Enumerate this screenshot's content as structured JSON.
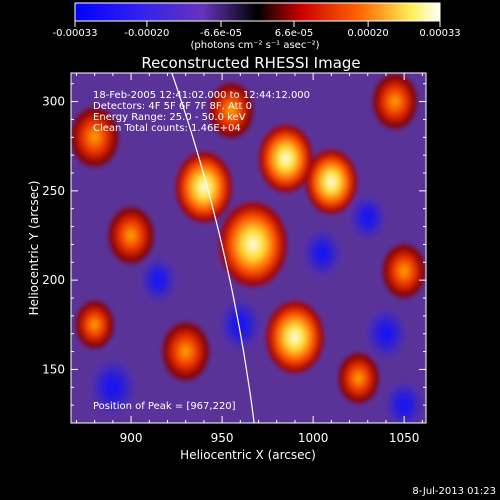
{
  "colorbar": {
    "tick_labels": [
      "-0.00033",
      "-0.00020",
      "-6.6e-05",
      "6.6e-05",
      "0.00020",
      "0.00033"
    ],
    "tick_values": [
      -0.00033,
      -0.0002,
      -6.6e-05,
      6.6e-05,
      0.0002,
      0.00033
    ],
    "range": [
      -0.00033,
      0.00033
    ],
    "unit_label": "(photons cm⁻² s⁻¹ asec⁻²)",
    "colors": [
      "#0000ff",
      "#6633cc",
      "#000000",
      "#cc0000",
      "#ff6600",
      "#ffff66",
      "#ffffff"
    ]
  },
  "chart_data": {
    "type": "heatmap",
    "title": "Reconstructed RHESSI Image",
    "xlabel": "Heliocentric X (arcsec)",
    "ylabel": "Heliocentric Y (arcsec)",
    "xlim": [
      867,
      1062
    ],
    "ylim": [
      120,
      316
    ],
    "x_ticks": [
      900,
      950,
      1000,
      1050
    ],
    "y_ticks": [
      150,
      200,
      250,
      300
    ],
    "annotations": [
      "18-Feb-2005 12:41:02.000 to 12:44:12.000",
      "Detectors: 4F 5F 6F 7F 8F, Att 0",
      "Energy Range: 25.0 - 50.0 keV",
      "Clean     Total counts: 1.46E+04"
    ],
    "peak_label": "Position of Peak = [967,220]",
    "peak": [
      967,
      220
    ],
    "sources": [
      {
        "x": 967,
        "y": 220,
        "value": 0.00033
      },
      {
        "x": 940,
        "y": 252,
        "value": 0.00024
      },
      {
        "x": 985,
        "y": 268,
        "value": 0.00022
      },
      {
        "x": 1010,
        "y": 255,
        "value": 0.0002
      },
      {
        "x": 990,
        "y": 168,
        "value": 0.00025
      },
      {
        "x": 880,
        "y": 280,
        "value": 0.00018
      },
      {
        "x": 900,
        "y": 225,
        "value": 0.00016
      },
      {
        "x": 930,
        "y": 160,
        "value": 0.00017
      },
      {
        "x": 1045,
        "y": 300,
        "value": 0.00015
      },
      {
        "x": 1050,
        "y": 205,
        "value": 0.00014
      },
      {
        "x": 955,
        "y": 295,
        "value": 0.00015
      },
      {
        "x": 1025,
        "y": 145,
        "value": 0.00012
      },
      {
        "x": 880,
        "y": 175,
        "value": 0.0001
      },
      {
        "x": 1005,
        "y": 215,
        "value": -0.00012
      },
      {
        "x": 1030,
        "y": 235,
        "value": -0.0001
      },
      {
        "x": 960,
        "y": 175,
        "value": -0.00015
      },
      {
        "x": 1040,
        "y": 170,
        "value": -0.00014
      },
      {
        "x": 890,
        "y": 140,
        "value": -0.00018
      },
      {
        "x": 1050,
        "y": 130,
        "value": -0.00012
      },
      {
        "x": 915,
        "y": 200,
        "value": -0.0001
      }
    ],
    "grid": false
  },
  "footer": {
    "timestamp": "8-Jul-2013 01:23"
  }
}
